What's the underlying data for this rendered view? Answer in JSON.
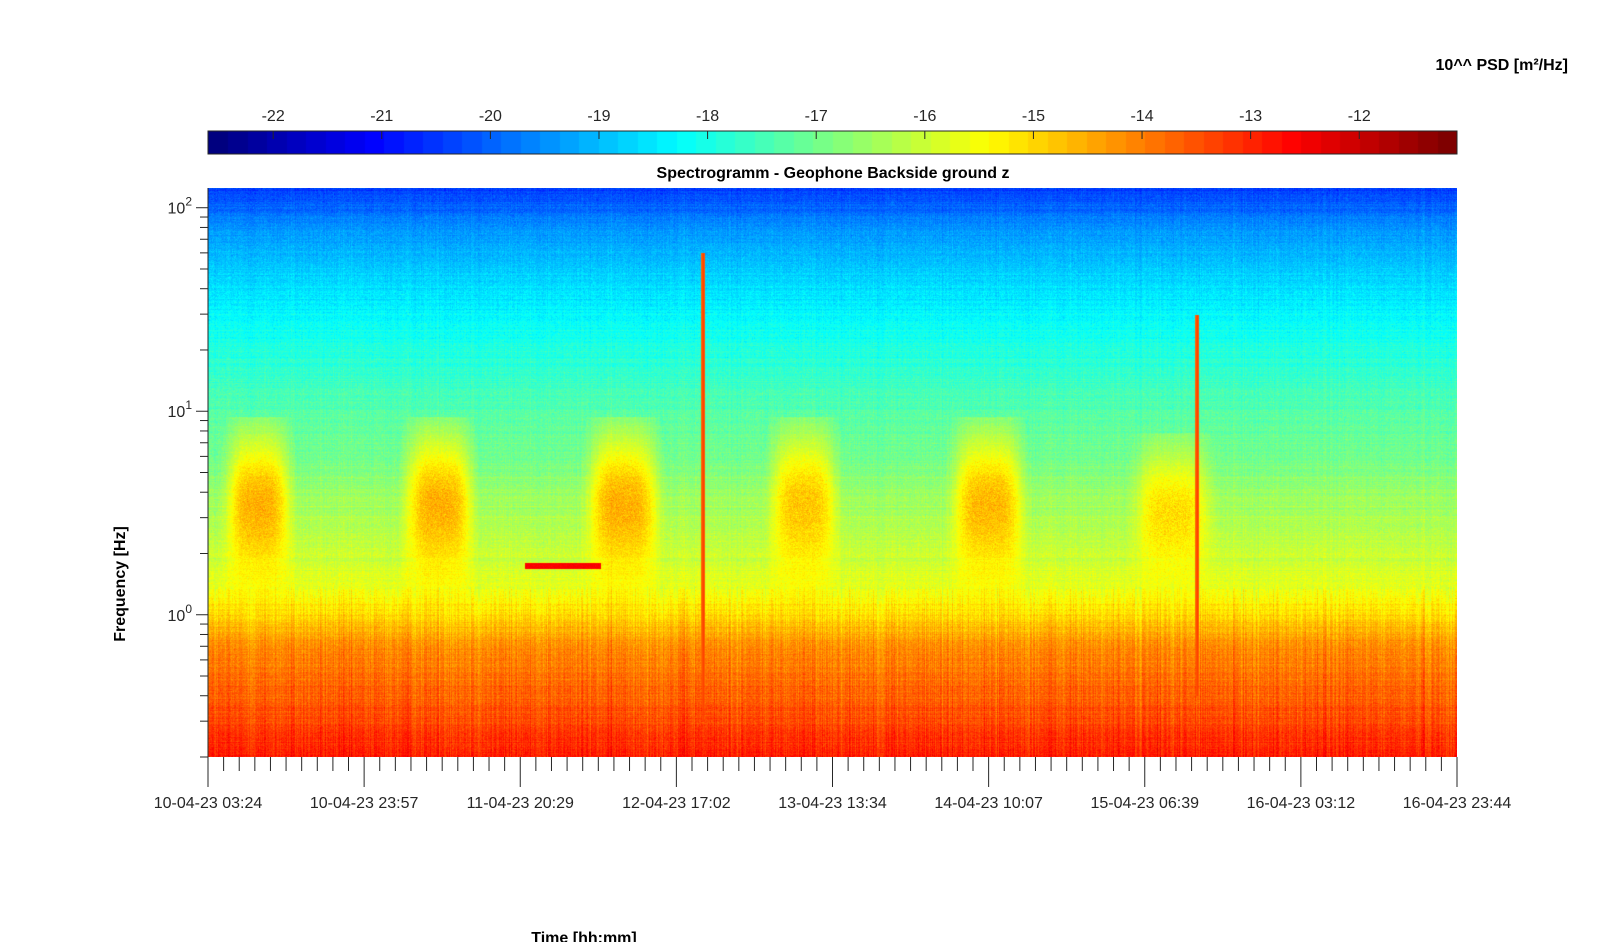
{
  "chart_data": {
    "type": "heatmap",
    "title": "Spectrogramm - Geophone Backside ground z",
    "xlabel": "Time [hh:mm]",
    "ylabel": "Frequency [Hz]",
    "x_scale": "time",
    "y_scale": "log",
    "y_range_hz": [
      0.2,
      125
    ],
    "x_tick_labels": [
      "10-04-23 03:24",
      "10-04-23 23:57",
      "11-04-23 20:29",
      "12-04-23 17:02",
      "13-04-23 13:34",
      "14-04-23 10:07",
      "15-04-23 06:39",
      "16-04-23 03:12",
      "16-04-23 23:44"
    ],
    "y_ticks": [
      {
        "base": "10",
        "exp": "0",
        "value": 1
      },
      {
        "base": "10",
        "exp": "1",
        "value": 10
      },
      {
        "base": "10",
        "exp": "2",
        "value": 100
      }
    ],
    "colorbar": {
      "label": "10^^ PSD [m²/Hz]",
      "colormap": "jet",
      "range": [
        -22.6,
        -11.1
      ],
      "ticks": [
        "-22",
        "-21",
        "-20",
        "-19",
        "-18",
        "-17",
        "-16",
        "-15",
        "-14",
        "-13",
        "-12"
      ],
      "tick_values": [
        -22,
        -21,
        -20,
        -19,
        -18,
        -17,
        -16,
        -15,
        -14,
        -13,
        -12
      ]
    },
    "background_psd_profile": {
      "freq_hz": [
        0.2,
        0.3,
        0.45,
        0.7,
        0.9,
        1.1,
        1.5,
        2.5,
        4,
        6,
        10,
        15,
        30,
        50,
        80,
        125
      ],
      "log10_psd": [
        -12.8,
        -13.3,
        -13.7,
        -14.1,
        -14.7,
        -15.2,
        -15.8,
        -16.2,
        -16.6,
        -17.0,
        -17.3,
        -17.7,
        -18.3,
        -18.9,
        -19.5,
        -20.5
      ]
    },
    "daytime_activity_bursts": [
      {
        "time_start": "10-04-23 07:00",
        "time_end": "10-04-23 13:00",
        "freq_range_hz": [
          2,
          6
        ],
        "log10_psd": -14.3
      },
      {
        "time_start": "11-04-23 06:30",
        "time_end": "11-04-23 13:00",
        "freq_range_hz": [
          2,
          6
        ],
        "log10_psd": -14.3
      },
      {
        "time_start": "12-04-23 06:30",
        "time_end": "12-04-23 13:30",
        "freq_range_hz": [
          2,
          6
        ],
        "log10_psd": -14.3
      },
      {
        "time_start": "13-04-23 06:30",
        "time_end": "13-04-23 13:00",
        "freq_range_hz": [
          2,
          6
        ],
        "log10_psd": -14.6
      },
      {
        "time_start": "14-04-23 06:30",
        "time_end": "14-04-23 13:30",
        "freq_range_hz": [
          2,
          6
        ],
        "log10_psd": -14.4
      },
      {
        "time_start": "15-04-23 06:30",
        "time_end": "15-04-23 14:00",
        "freq_range_hz": [
          2,
          5
        ],
        "log10_psd": -14.9
      }
    ],
    "narrowband_lines": [
      {
        "time_start": "11-04-23 21:00",
        "time_end": "12-04-23 07:00",
        "freq_hz": 1.75,
        "log10_psd": -12.5
      }
    ],
    "transient_events": [
      {
        "time": "12-04-23 20:30",
        "freq_range_hz": [
          0.3,
          60
        ],
        "log10_psd": -13.8
      },
      {
        "time": "15-04-23 13:30",
        "freq_range_hz": [
          0.4,
          30
        ],
        "log10_psd": -13.8
      }
    ]
  }
}
